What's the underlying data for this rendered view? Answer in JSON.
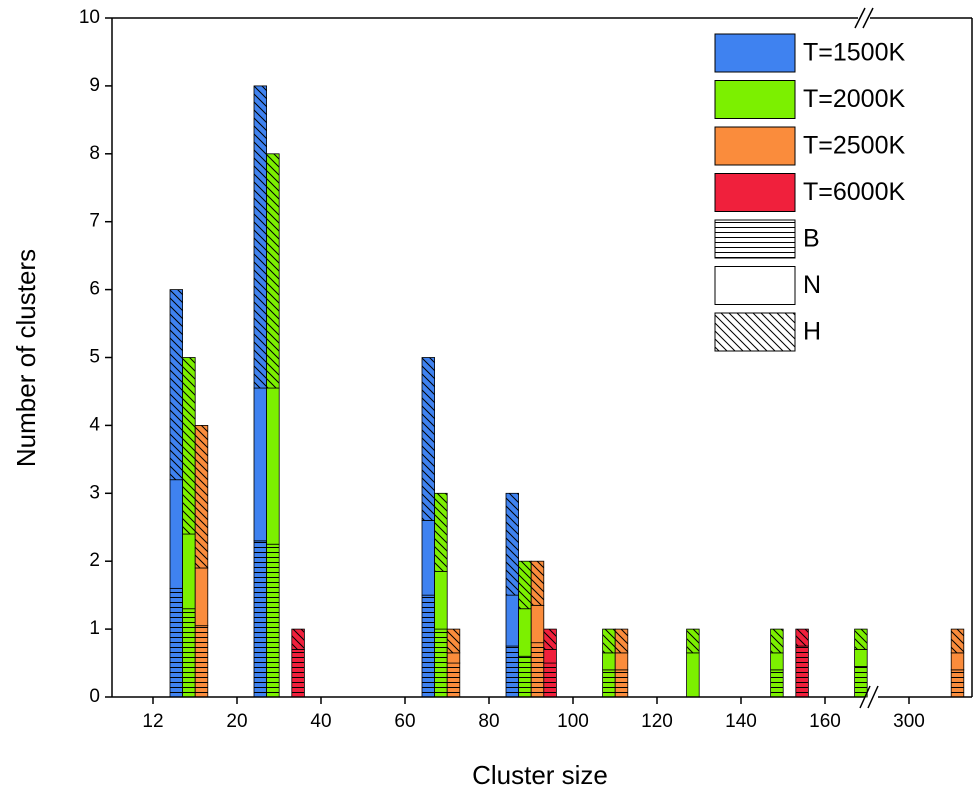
{
  "chart_data": {
    "type": "stacked-pattern-bar",
    "x_label": "Cluster size",
    "y_label": "Number of clusters",
    "categories": [
      "12",
      "20",
      "40",
      "60",
      "80",
      "100",
      "120",
      "140",
      "160",
      "300"
    ],
    "ylim": [
      0,
      10
    ],
    "yticks": [
      0,
      1,
      2,
      3,
      4,
      5,
      6,
      7,
      8,
      9,
      10
    ],
    "patterns": [
      {
        "name": "B"
      },
      {
        "name": "N"
      },
      {
        "name": "H"
      }
    ],
    "series": [
      {
        "name": "T=1500K",
        "color": "#3f82f0",
        "values": [
          [
            1.6,
            1.6,
            2.8
          ],
          [
            2.3,
            2.25,
            4.45
          ],
          null,
          [
            1.5,
            1.1,
            2.4
          ],
          [
            0.75,
            0.75,
            1.5
          ],
          null,
          null,
          null,
          null,
          null
        ]
      },
      {
        "name": "T=2000K",
        "color": "#7cf000",
        "values": [
          [
            1.3,
            1.1,
            2.6
          ],
          [
            2.25,
            2.3,
            3.45
          ],
          null,
          [
            1.0,
            0.85,
            1.15
          ],
          [
            0.6,
            0.7,
            0.7
          ],
          [
            0.4,
            0.25,
            0.35
          ],
          [
            0,
            0.65,
            0.35
          ],
          [
            0.4,
            0.25,
            0.35
          ],
          [
            0.45,
            0.25,
            0.3
          ],
          null
        ]
      },
      {
        "name": "T=2500K",
        "color": "#fa8c3c",
        "values": [
          [
            1.05,
            0.85,
            2.1
          ],
          null,
          null,
          [
            0.5,
            0.15,
            0.35
          ],
          [
            0.8,
            0.55,
            0.65
          ],
          [
            0.4,
            0.25,
            0.35
          ],
          null,
          null,
          null,
          [
            0.4,
            0.25,
            0.35
          ]
        ]
      },
      {
        "name": "T=6000K",
        "color": "#f0203c",
        "values": [
          null,
          [
            0.7,
            0,
            0.3
          ],
          null,
          null,
          [
            0.5,
            0.2,
            0.3
          ],
          null,
          null,
          [
            0.75,
            0,
            0.25
          ],
          null,
          null
        ]
      }
    ]
  }
}
